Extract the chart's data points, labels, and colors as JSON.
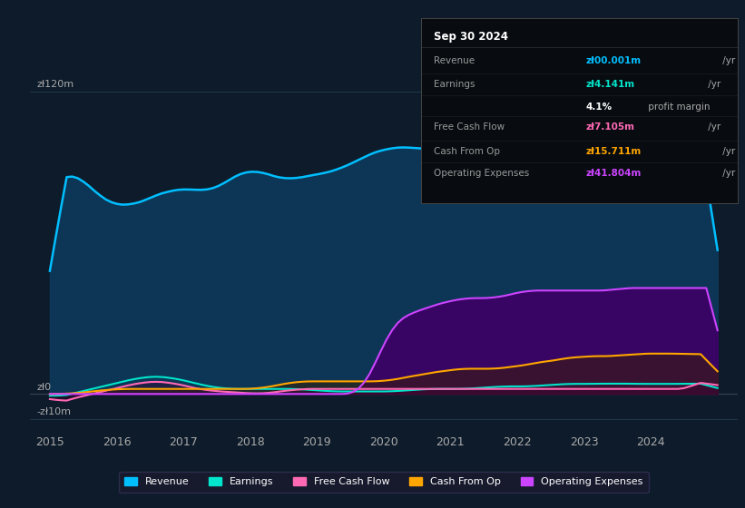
{
  "bg_color": "#0d1b2a",
  "plot_bg_color": "#0d1b2a",
  "title": "Sep 30 2024",
  "ylabel_120": "zł120m",
  "ylabel_0": "zł0",
  "ylabel_neg10": "-zł10m",
  "xlim_start": 2014.7,
  "xlim_end": 2025.3,
  "ylim_min": -15,
  "ylim_max": 130,
  "grid_color": "#1e3a4a",
  "revenue_color": "#00bfff",
  "earnings_color": "#00e5cc",
  "fcf_color": "#ff69b4",
  "cashfromop_color": "#ffa500",
  "opex_color": "#cc44ff",
  "revenue_fill": "#0d3a5c",
  "opex_fill": "#3d0066",
  "legend_bg": "#1a1a2e",
  "legend_border": "#333355",
  "info_title": "Sep 30 2024",
  "info_rows": [
    {
      "label": "Revenue",
      "value": "zł00.001m",
      "suffix": " /yr",
      "value_color": "#00bfff"
    },
    {
      "label": "Earnings",
      "value": "zł4.141m",
      "suffix": " /yr",
      "value_color": "#00e5cc"
    },
    {
      "label": "",
      "value": "4.1%",
      "suffix": " profit margin",
      "value_color": "#ffffff"
    },
    {
      "label": "Free Cash Flow",
      "value": "zł7.105m",
      "suffix": " /yr",
      "value_color": "#ff69b4"
    },
    {
      "label": "Cash From Op",
      "value": "zł15.711m",
      "suffix": " /yr",
      "value_color": "#ffa500"
    },
    {
      "label": "Operating Expenses",
      "value": "zł41.804m",
      "suffix": " /yr",
      "value_color": "#cc44ff"
    }
  ],
  "legend_labels": [
    "Revenue",
    "Earnings",
    "Free Cash Flow",
    "Cash From Op",
    "Operating Expenses"
  ],
  "legend_colors": [
    "#00bfff",
    "#00e5cc",
    "#ff69b4",
    "#ffa500",
    "#cc44ff"
  ]
}
